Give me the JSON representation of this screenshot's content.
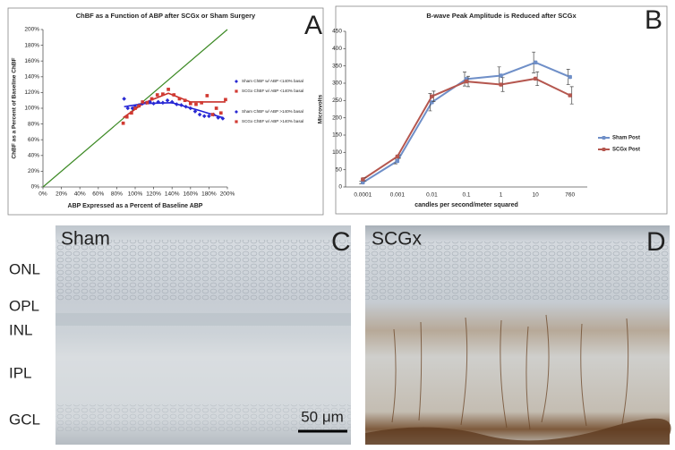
{
  "chart_data": [
    {
      "type": "scatter",
      "title": "ChBF as a Function of ABP after SCGx or Sham Surgery",
      "x_label": "ABP Expressed as a Percent of Baseline ABP",
      "y_label": "ChBF as a Percent of Baseline ChBF",
      "xlim": [
        0,
        200
      ],
      "ylim": [
        0,
        200
      ],
      "xticks": [
        {
          "value": 0,
          "label": "0%"
        },
        {
          "value": 20,
          "label": "20%"
        },
        {
          "value": 40,
          "label": "40%"
        },
        {
          "value": 60,
          "label": "60%"
        },
        {
          "value": 80,
          "label": "80%"
        },
        {
          "value": 100,
          "label": "100%"
        },
        {
          "value": 120,
          "label": "120%"
        },
        {
          "value": 140,
          "label": "140%"
        },
        {
          "value": 160,
          "label": "160%"
        },
        {
          "value": 180,
          "label": "180%"
        },
        {
          "value": 200,
          "label": "200%"
        }
      ],
      "yticks": [
        {
          "value": 0,
          "label": "0%"
        },
        {
          "value": 20,
          "label": "20%"
        },
        {
          "value": 40,
          "label": "40%"
        },
        {
          "value": 60,
          "label": "60%"
        },
        {
          "value": 80,
          "label": "80%"
        },
        {
          "value": 100,
          "label": "100%"
        },
        {
          "value": 120,
          "label": "120%"
        },
        {
          "value": 140,
          "label": "140%"
        },
        {
          "value": 160,
          "label": "160%"
        },
        {
          "value": 180,
          "label": "180%"
        },
        {
          "value": 200,
          "label": "200%"
        }
      ],
      "legend": "right",
      "series": [
        {
          "name": "Sham ChBF w/ ABP <140% basal",
          "color": "#2a2ad2",
          "marker": "diamond",
          "x": [
            88,
            92,
            97,
            100,
            104,
            108,
            112,
            116,
            120,
            125,
            130,
            135
          ],
          "values": [
            112,
            100,
            100,
            102,
            104,
            106,
            107,
            108,
            106,
            108,
            107,
            110
          ]
        },
        {
          "name": "SCGx ChBF w/ ABP <140% basal",
          "color": "#d13a32",
          "marker": "square",
          "x": [
            87,
            91,
            96,
            100,
            104,
            108,
            113,
            118,
            124,
            130,
            136
          ],
          "values": [
            81,
            89,
            94,
            100,
            103,
            108,
            107,
            112,
            117,
            118,
            124
          ]
        },
        {
          "name": "Sham ChBF w/ ABP >140% basal",
          "color": "#2a2ad2",
          "marker": "diamond",
          "x": [
            140,
            145,
            150,
            155,
            160,
            165,
            170,
            175,
            180,
            185,
            190,
            195
          ],
          "values": [
            108,
            105,
            104,
            102,
            100,
            96,
            92,
            90,
            90,
            92,
            88,
            87
          ]
        },
        {
          "name": "SCGx ChBF w/ ABP >140% basal",
          "color": "#d13a32",
          "marker": "square",
          "x": [
            142,
            148,
            154,
            160,
            166,
            172,
            178,
            184,
            188,
            193,
            198
          ],
          "values": [
            117,
            112,
            110,
            106,
            105,
            107,
            116,
            92,
            100,
            94,
            111
          ]
        }
      ],
      "trendlines": [
        {
          "color": "#1f1fd8",
          "x": [
            88,
            110,
            140,
            170,
            195
          ],
          "values": [
            102,
            106,
            107,
            97,
            88
          ]
        },
        {
          "color": "#c8302a",
          "x": [
            87,
            110,
            136,
            160,
            198
          ],
          "values": [
            88,
            107,
            119,
            108,
            108
          ]
        }
      ],
      "reference_line": {
        "color": "#3d8a25",
        "x": [
          0,
          200
        ],
        "values": [
          0,
          200
        ]
      }
    },
    {
      "type": "line",
      "title": "B-wave Peak Amplitude is Reduced after SCGx",
      "x_label": "candles per second/meter squared",
      "y_label": "Microvolts",
      "categories": [
        "0.0001",
        "0.001",
        "0.01",
        "0.1",
        "1",
        "10",
        "760"
      ],
      "ylim": [
        0,
        450
      ],
      "yticks": [
        0,
        50,
        100,
        150,
        200,
        250,
        300,
        350,
        400,
        450
      ],
      "legend": "right",
      "series": [
        {
          "name": "Sham Post",
          "color": "#6f8fc8",
          "values": [
            13,
            75,
            245,
            312,
            322,
            360,
            318
          ],
          "errors": [
            4,
            8,
            25,
            20,
            25,
            30,
            22
          ]
        },
        {
          "name": "SCGx Post",
          "color": "#b5574f",
          "values": [
            22,
            88,
            262,
            305,
            296,
            313,
            265
          ],
          "errors": [
            5,
            5,
            15,
            15,
            20,
            20,
            25
          ]
        }
      ]
    }
  ],
  "panel_letters": [
    "A",
    "B",
    "C",
    "D"
  ],
  "images": [
    {
      "label": "Sham"
    },
    {
      "label": "SCGx"
    }
  ],
  "layer_labels": [
    "ONL",
    "OPL",
    "INL",
    "IPL",
    "GCL"
  ],
  "scale_bar": "50 μm"
}
